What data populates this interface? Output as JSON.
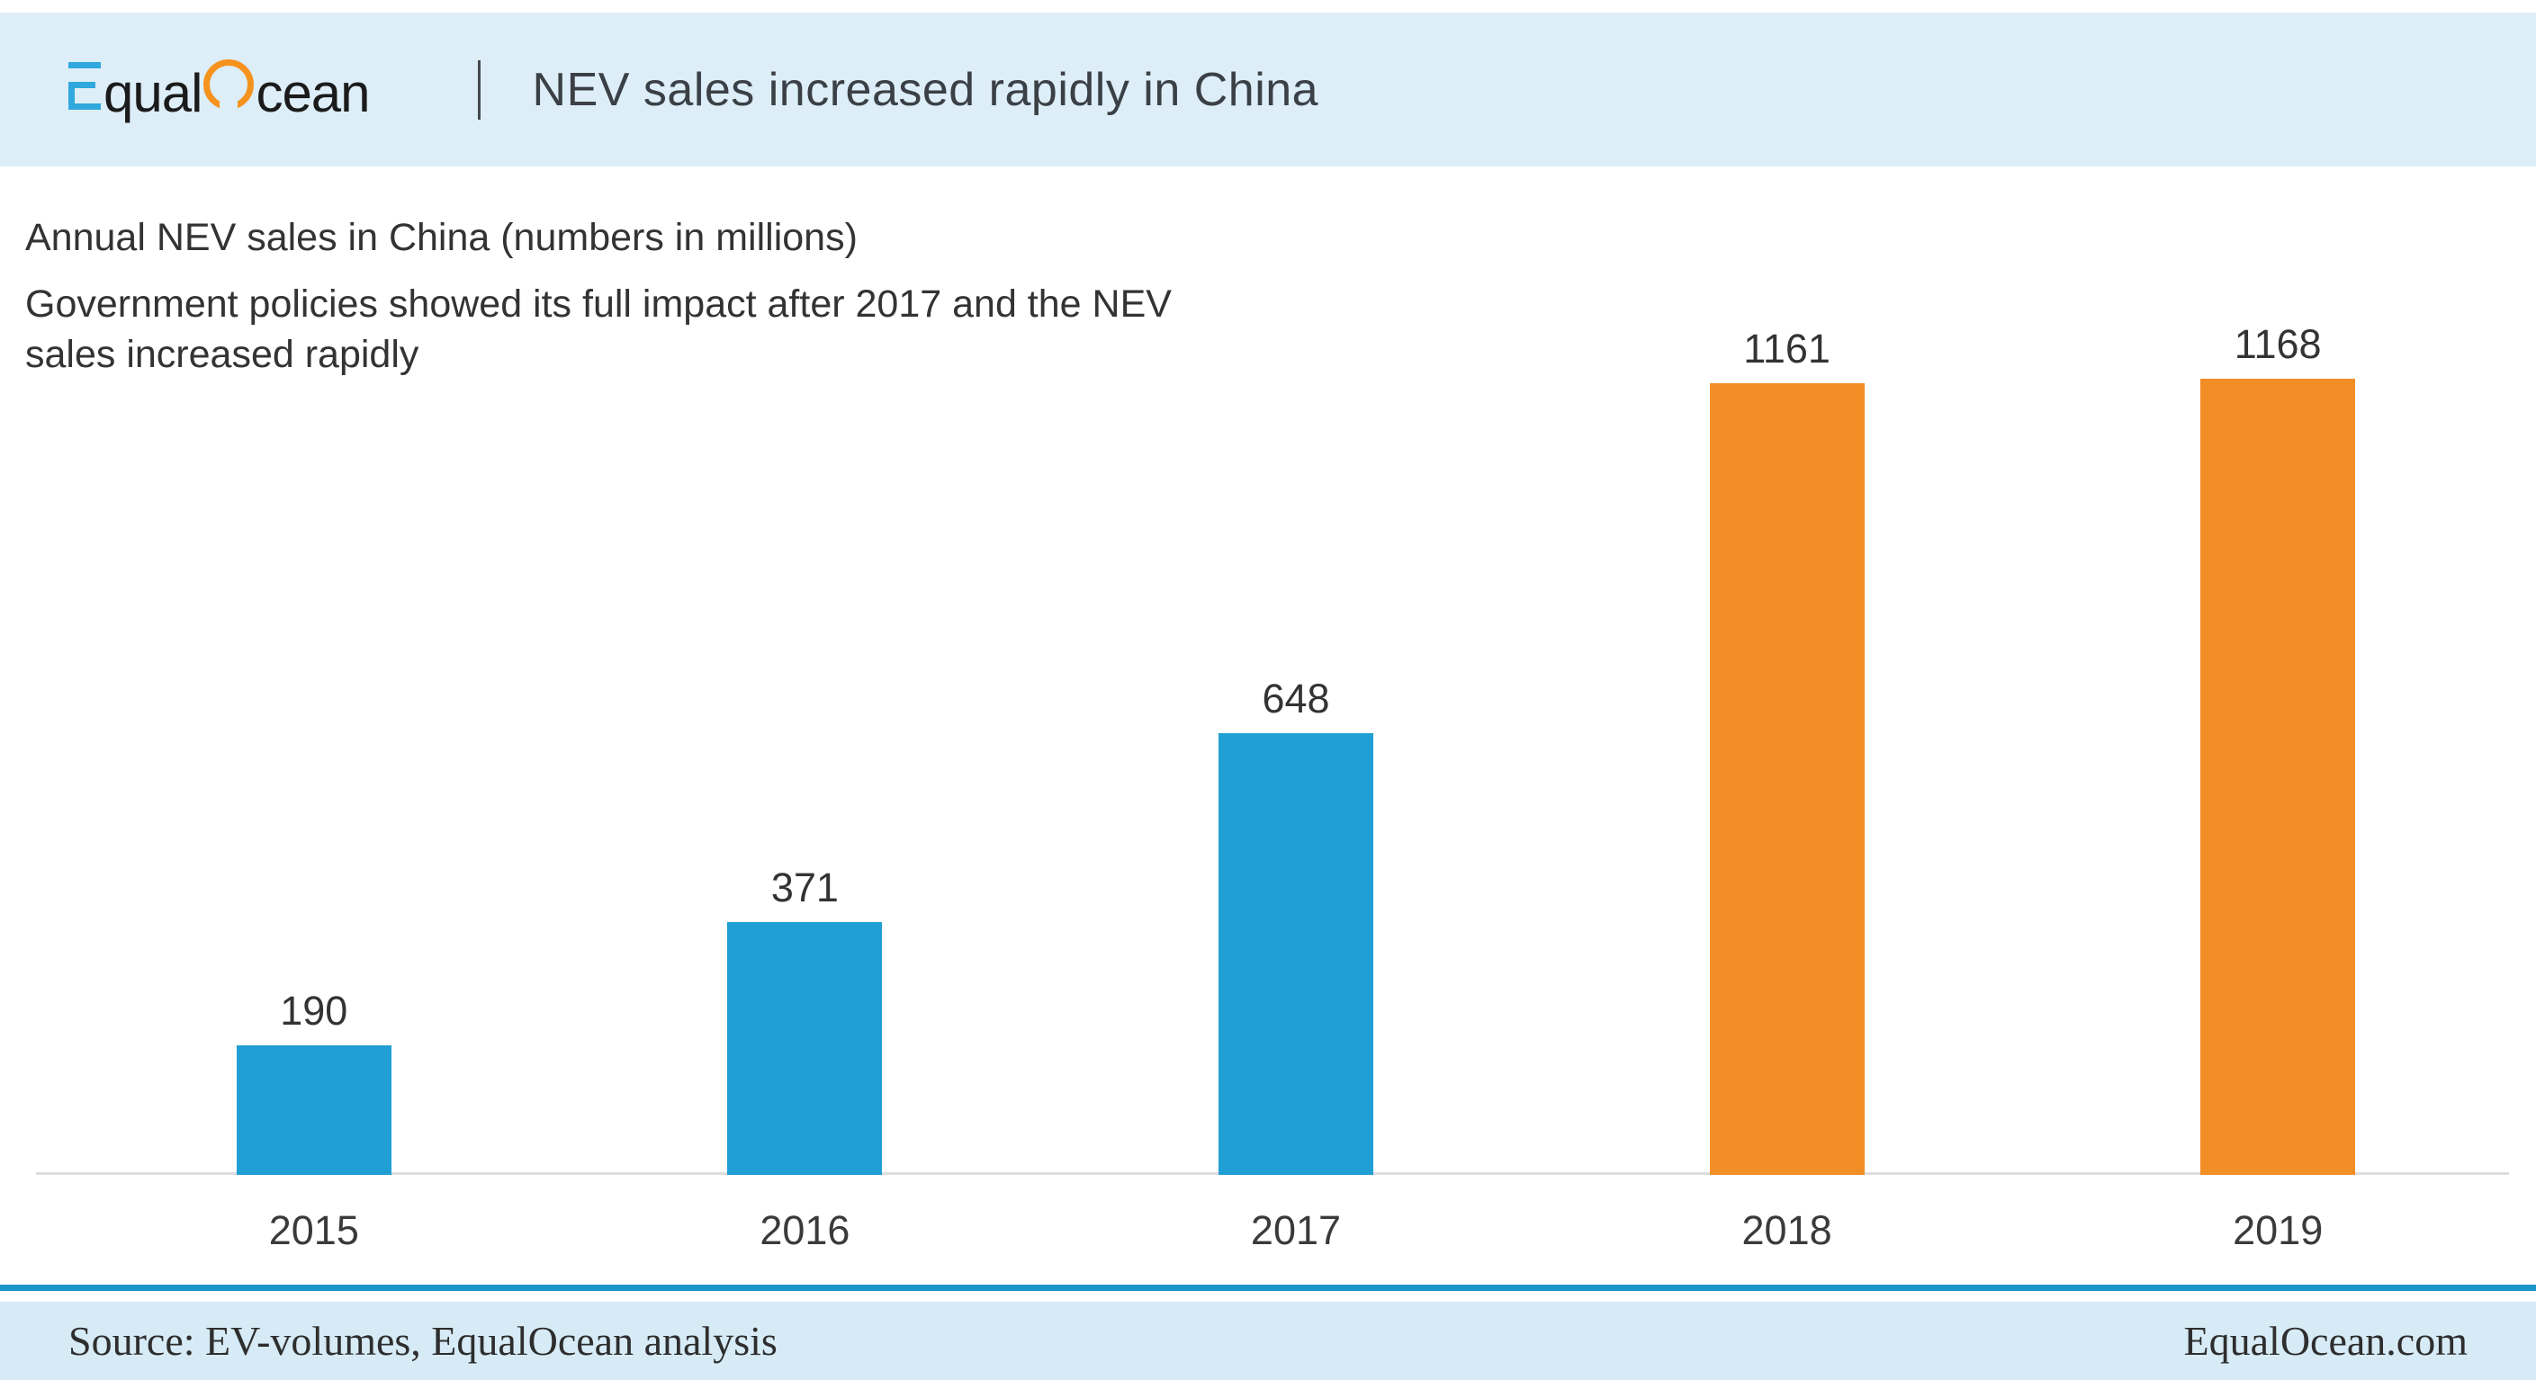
{
  "header": {
    "brand_text": "EqualOcean",
    "logo": {
      "text_after_e": "qual",
      "text_after_o": "cean",
      "e_color": "#2fa8dd",
      "o_color": "#f6921e"
    },
    "title": "NEV sales increased rapidly in China"
  },
  "chart_data": {
    "type": "bar",
    "title": "Annual NEV sales in China (numbers in millions)",
    "subtitle_lines": [
      "Government policies showed its full impact after 2017 and the NEV",
      "sales increased rapidly"
    ],
    "categories": [
      "2015",
      "2016",
      "2017",
      "2018",
      "2019"
    ],
    "values": [
      190,
      371,
      648,
      1161,
      1168
    ],
    "bar_colors": [
      "#1f9fd4",
      "#1f9fd4",
      "#1f9fd4",
      "#f28e26",
      "#f28e26"
    ],
    "value_labels": true,
    "grid": false,
    "legend_position": "none",
    "xlabel": "",
    "ylabel": "",
    "ylim": [
      0,
      1200
    ]
  },
  "footer": {
    "source": "Source: EV-volumes, EqualOcean analysis",
    "site": "EqualOcean.com"
  },
  "colors": {
    "header_bg": "#ddeef8",
    "footer_bg": "#d6ebf6",
    "footer_rule": "#1b96ca",
    "axis_line": "#dddddd",
    "accent_blue": "#1f9fd4",
    "accent_orange": "#f28e26"
  }
}
